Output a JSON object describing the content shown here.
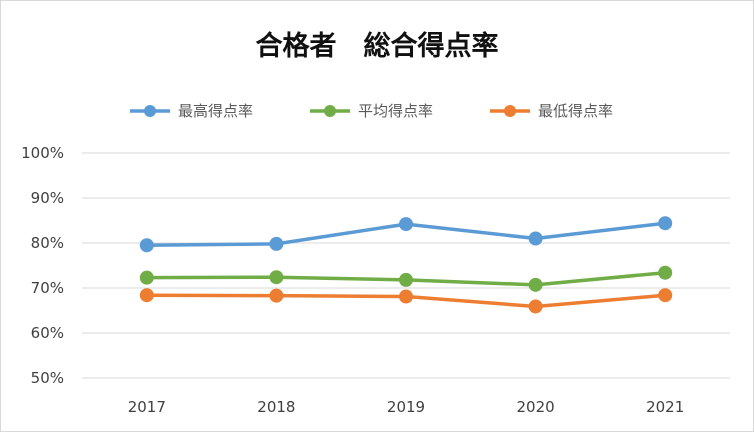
{
  "chart_data": {
    "type": "line",
    "title": "合格者　総合得点率",
    "categories": [
      "2017",
      "2018",
      "2019",
      "2020",
      "2021"
    ],
    "series": [
      {
        "name": "最高得点率",
        "color": "#5B9BD5",
        "values": [
          79.5,
          79.8,
          84.2,
          81.0,
          84.4
        ]
      },
      {
        "name": "平均得点率",
        "color": "#70AD47",
        "values": [
          72.3,
          72.4,
          71.8,
          70.7,
          73.4
        ]
      },
      {
        "name": "最低得点率",
        "color": "#ED7D31",
        "values": [
          68.4,
          68.3,
          68.1,
          65.9,
          68.4
        ]
      }
    ],
    "y_ticks": [
      "50%",
      "60%",
      "70%",
      "80%",
      "90%",
      "100%"
    ],
    "ylim": [
      50,
      100
    ],
    "xlabel": "",
    "ylabel": "",
    "grid": true,
    "legend": "top",
    "colors": {
      "gridline": "#D9D9D9",
      "border": "#D9D9D9",
      "text": "#404040"
    }
  }
}
